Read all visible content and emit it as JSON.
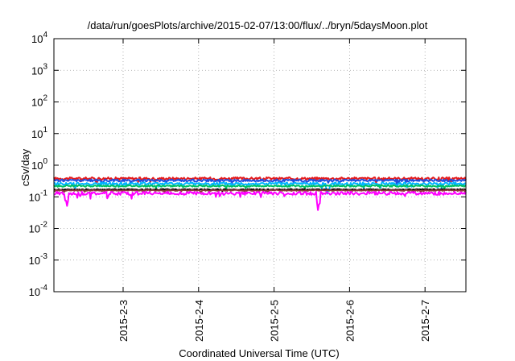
{
  "chart_data": {
    "type": "line",
    "title": "/data/run/goesPlots/archive/2015-02-07/13:00/flux/../bryn/5daysMoon.plot",
    "xlabel": "Coordinated Universal Time (UTC)",
    "ylabel": "cSv/day",
    "yscale": "log",
    "ylim": [
      0.0001,
      10000
    ],
    "xlim": [
      "2015-02-02 02:00",
      "2015-02-07 13:00"
    ],
    "grid": true,
    "yticks": [
      {
        "value": 0.0001,
        "base": "10",
        "exp": "-4"
      },
      {
        "value": 0.001,
        "base": "10",
        "exp": "-3"
      },
      {
        "value": 0.01,
        "base": "10",
        "exp": "-2"
      },
      {
        "value": 0.1,
        "base": "10",
        "exp": "-1"
      },
      {
        "value": 1,
        "base": "10",
        "exp": "0"
      },
      {
        "value": 10,
        "base": "10",
        "exp": "1"
      },
      {
        "value": 100,
        "base": "10",
        "exp": "2"
      },
      {
        "value": 1000,
        "base": "10",
        "exp": "3"
      },
      {
        "value": 10000,
        "base": "10",
        "exp": "4"
      }
    ],
    "xticks": [
      {
        "value": "2015-02-03 00:00",
        "label": "2015-2-3"
      },
      {
        "value": "2015-02-04 00:00",
        "label": "2015-2-4"
      },
      {
        "value": "2015-02-05 00:00",
        "label": "2015-2-5"
      },
      {
        "value": "2015-02-06 00:00",
        "label": "2015-2-6"
      },
      {
        "value": "2015-02-07 00:00",
        "label": "2015-2-7"
      }
    ],
    "series": [
      {
        "color": "#e41a1c",
        "level": 0.38,
        "jitter": 0.09,
        "dips": []
      },
      {
        "color": "#1f4fe0",
        "level": 0.33,
        "jitter": 0.08,
        "dips": []
      },
      {
        "color": "#00b4ff",
        "level": 0.26,
        "jitter": 0.1,
        "dips": [
          [
            "2015-02-05 17:00",
            0.6
          ]
        ]
      },
      {
        "color": "#00c060",
        "level": 0.22,
        "jitter": 0.06,
        "dips": []
      },
      {
        "color": "#000000",
        "level": 0.17,
        "jitter": 0.04,
        "dips": []
      },
      {
        "color": "#8b3a3a",
        "level": 0.16,
        "jitter": 0.04,
        "dips": []
      },
      {
        "color": "#ff00ff",
        "level": 0.13,
        "jitter": 0.12,
        "dips": [
          [
            "2015-02-02 06:00",
            0.6
          ],
          [
            "2015-02-05 14:00",
            0.45
          ]
        ]
      }
    ]
  }
}
